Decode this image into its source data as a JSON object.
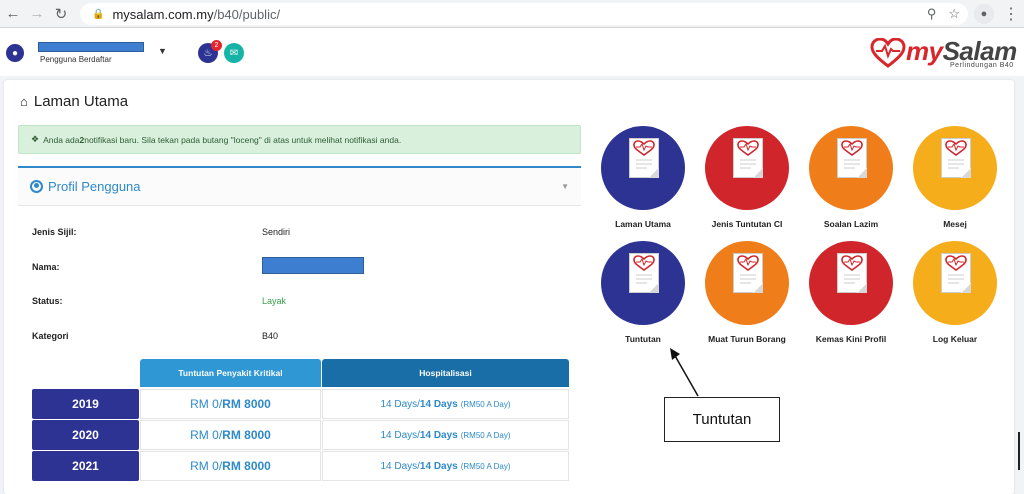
{
  "browser": {
    "url_host": "mysalam.com.my",
    "url_path": "/b40/public/"
  },
  "header": {
    "user_role": "Pengguna Berdaftar",
    "notification_count": "2",
    "logo_text_m": "my",
    "logo_text_rest": "Salam",
    "logo_subtitle": "Perlindungan B40"
  },
  "page": {
    "title": "Laman Utama"
  },
  "alert": {
    "text_before": "Anda ada ",
    "count": "2",
    "text_after": " notifikasi baru. Sila tekan pada butang \"loceng\" di atas untuk melihat notifikasi anda."
  },
  "profile": {
    "heading": "Profil Pengguna",
    "fields": [
      {
        "label": "Jenis Sijil:",
        "value": "Sendiri"
      },
      {
        "label": "Nama:",
        "value": ""
      },
      {
        "label": "Status:",
        "value": "Layak"
      },
      {
        "label": "Kategori",
        "value": "B40"
      }
    ]
  },
  "claims": {
    "col_ci": "Tuntutan Penyakit Kritikal",
    "col_hosp": "Hospitalisasi",
    "rows": [
      {
        "year": "2019",
        "ci_used": "RM 0",
        "ci_sep": " / ",
        "ci_max": "RM 8000",
        "hosp_used": "14 Days",
        "hosp_sep": " / ",
        "hosp_max": "14 Days",
        "hosp_rate": "(RM50 A Day)"
      },
      {
        "year": "2020",
        "ci_used": "RM 0",
        "ci_sep": " / ",
        "ci_max": "RM 8000",
        "hosp_used": "14 Days",
        "hosp_sep": " / ",
        "hosp_max": "14 Days",
        "hosp_rate": "(RM50 A Day)"
      },
      {
        "year": "2021",
        "ci_used": "RM 0",
        "ci_sep": " / ",
        "ci_max": "RM 8000",
        "hosp_used": "14 Days",
        "hosp_sep": " / ",
        "hosp_max": "14 Days",
        "hosp_rate": "(RM50 A Day)"
      }
    ]
  },
  "tiles": [
    {
      "label": "Laman Utama",
      "color": "#2d3393"
    },
    {
      "label": "Jenis Tuntutan CI",
      "color": "#d0262b"
    },
    {
      "label": "Soalan Lazim",
      "color": "#ef7d1a"
    },
    {
      "label": "Mesej",
      "color": "#f6ad1c"
    },
    {
      "label": "Tuntutan",
      "color": "#2d3393"
    },
    {
      "label": "Muat Turun Borang",
      "color": "#ef7d1a"
    },
    {
      "label": "Kemas Kini Profil",
      "color": "#d0262b"
    },
    {
      "label": "Log Keluar",
      "color": "#f6ad1c"
    }
  ],
  "callout": {
    "text": "Tuntutan"
  }
}
